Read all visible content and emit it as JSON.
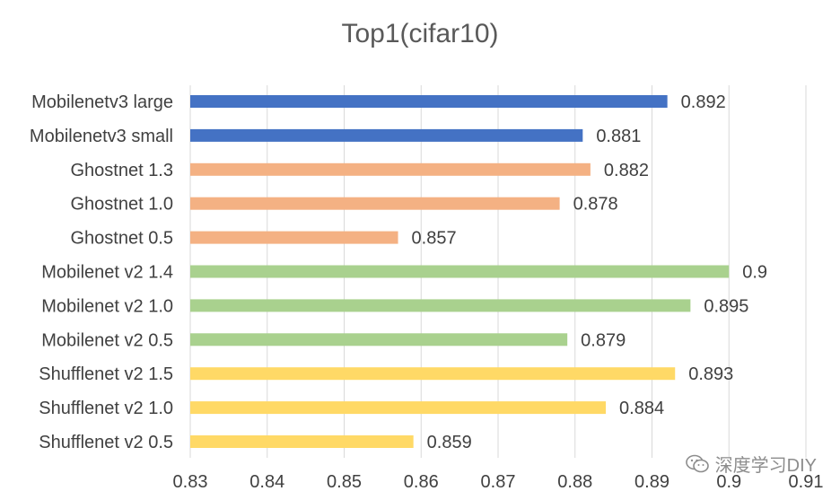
{
  "chart_data": {
    "type": "bar",
    "orientation": "horizontal",
    "title": "Top1(cifar10)",
    "xlabel": "",
    "ylabel": "",
    "xlim": [
      0.83,
      0.91
    ],
    "xticks": [
      "0.83",
      "0.84",
      "0.85",
      "0.86",
      "0.87",
      "0.88",
      "0.89",
      "0.9",
      "0.91"
    ],
    "grid": true,
    "legend": "none",
    "categories": [
      "Mobilenetv3 large",
      "Mobilenetv3 small",
      "Ghostnet 1.3",
      "Ghostnet 1.0",
      "Ghostnet 0.5",
      "Mobilenet v2 1.4",
      "Mobilenet v2 1.0",
      "Mobilenet v2 0.5",
      "Shufflenet v2 1.5",
      "Shufflenet v2 1.0",
      "Shufflenet v2 0.5"
    ],
    "values": [
      0.892,
      0.881,
      0.882,
      0.878,
      0.857,
      0.9,
      0.895,
      0.879,
      0.893,
      0.884,
      0.859
    ],
    "value_labels": [
      "0.892",
      "0.881",
      "0.882",
      "0.878",
      "0.857",
      "0.9",
      "0.895",
      "0.879",
      "0.893",
      "0.884",
      "0.859"
    ],
    "colors": [
      "#4472c4",
      "#4472c4",
      "#f4b183",
      "#f4b183",
      "#f4b183",
      "#a9d18e",
      "#a9d18e",
      "#a9d18e",
      "#ffd966",
      "#ffd966",
      "#ffd966"
    ]
  },
  "watermark": {
    "icon": "wechat-icon",
    "text": "深度学习DIY"
  }
}
